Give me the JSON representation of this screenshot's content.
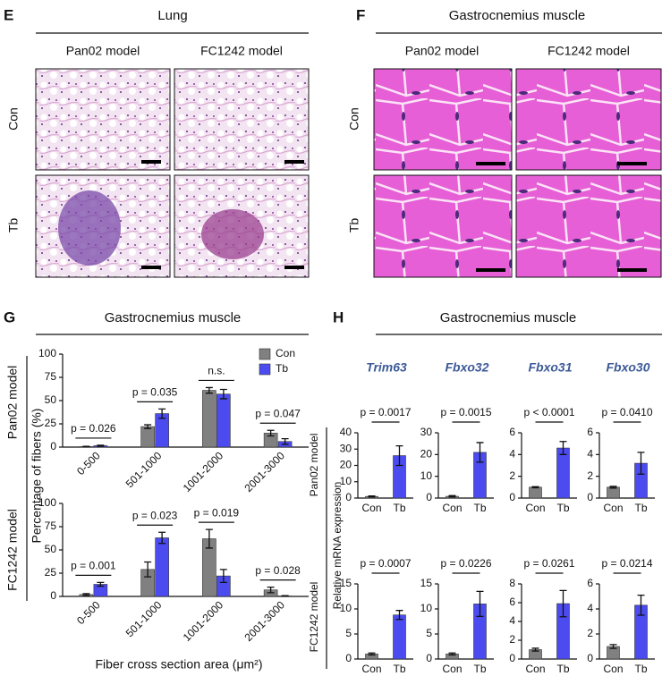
{
  "panel_e": {
    "letter": "E",
    "title": "Lung",
    "columns": [
      "Pan02 model",
      "FC1242 model"
    ],
    "rows": [
      "Con",
      "Tb"
    ]
  },
  "panel_f": {
    "letter": "F",
    "title": "Gastrocnemius muscle",
    "columns": [
      "Pan02 model",
      "FC1242 model"
    ],
    "rows": [
      "Con",
      "Tb"
    ]
  },
  "panel_g": {
    "letter": "G",
    "title": "Gastrocnemius muscle",
    "row_labels": [
      "Pan02 model",
      "FC1242 model"
    ],
    "y_label": "Percentage of fibers (%)",
    "x_label": "Fiber cross section area (μm²)"
  },
  "panel_h": {
    "letter": "H",
    "title": "Gastrocnemius muscle",
    "genes": [
      "Trim63",
      "Fbxo32",
      "Fbxo31",
      "Fbxo30"
    ],
    "row_labels": [
      "Pan02 model",
      "FC1242 model"
    ],
    "y_label": "Relative mRNA expression"
  },
  "chart_data": [
    {
      "type": "bar",
      "categories": [
        "0-500",
        "501-1000",
        "1001-2000",
        "2001-3000"
      ],
      "series": [
        {
          "name": "Con",
          "color": "#808080",
          "values": [
            0.5,
            22,
            61,
            15
          ],
          "errors": [
            0.3,
            2,
            3,
            3
          ]
        },
        {
          "name": "Tb",
          "color": "#4b4bf0",
          "values": [
            1.5,
            36,
            57,
            6
          ],
          "errors": [
            0.5,
            5,
            5,
            3
          ]
        }
      ],
      "ylim": [
        0,
        100
      ],
      "yticks": [
        0,
        25,
        50,
        75,
        100
      ],
      "legend": "upper right",
      "p_values": [
        "p = 0.026",
        "p = 0.035",
        "n.s.",
        "p = 0.047"
      ]
    },
    {
      "type": "bar",
      "categories": [
        "0-500",
        "501-1000",
        "1001-2000",
        "2001-3000"
      ],
      "series": [
        {
          "color": "#808080",
          "values": [
            2,
            29,
            62,
            7
          ],
          "errors": [
            1,
            8,
            10,
            3
          ]
        },
        {
          "color": "#4b4bf0",
          "values": [
            13,
            63,
            22,
            0.5
          ],
          "errors": [
            2,
            6,
            7,
            0.3
          ]
        }
      ],
      "ylim": [
        0,
        100
      ],
      "yticks": [
        0,
        25,
        50,
        75,
        100
      ],
      "p_values": [
        "p = 0.001",
        "p = 0.023",
        "p = 0.019",
        "p = 0.028"
      ]
    },
    {
      "type": "bar",
      "categories": [
        "Con",
        "Tb"
      ],
      "values": [
        1,
        26
      ],
      "errors": [
        0.3,
        6
      ],
      "colors": [
        "#808080",
        "#4b4bf0"
      ],
      "ylim": [
        0,
        40
      ],
      "yticks": [
        0,
        10,
        20,
        30,
        40
      ],
      "p_value": "p = 0.0017"
    },
    {
      "type": "bar",
      "categories": [
        "Con",
        "Tb"
      ],
      "values": [
        0.8,
        21
      ],
      "errors": [
        0.3,
        4.5
      ],
      "colors": [
        "#808080",
        "#4b4bf0"
      ],
      "ylim": [
        0,
        30
      ],
      "yticks": [
        0,
        10,
        20,
        30
      ],
      "p_value": "p = 0.0015"
    },
    {
      "type": "bar",
      "categories": [
        "Con",
        "Tb"
      ],
      "values": [
        1,
        4.6
      ],
      "errors": [
        0.05,
        0.6
      ],
      "colors": [
        "#808080",
        "#4b4bf0"
      ],
      "ylim": [
        0,
        6
      ],
      "yticks": [
        0,
        2,
        4,
        6
      ],
      "p_value": "p < 0.0001"
    },
    {
      "type": "bar",
      "categories": [
        "Con",
        "Tb"
      ],
      "values": [
        1,
        3.2
      ],
      "errors": [
        0.08,
        1
      ],
      "colors": [
        "#808080",
        "#4b4bf0"
      ],
      "ylim": [
        0,
        6
      ],
      "yticks": [
        0,
        2,
        4,
        6
      ],
      "p_value": "p = 0.0410"
    },
    {
      "type": "bar",
      "categories": [
        "Con",
        "Tb"
      ],
      "values": [
        1,
        8.8
      ],
      "errors": [
        0.2,
        0.9
      ],
      "colors": [
        "#808080",
        "#4b4bf0"
      ],
      "ylim": [
        0,
        15
      ],
      "yticks": [
        0,
        5,
        10,
        15
      ],
      "p_value": "p = 0.0007"
    },
    {
      "type": "bar",
      "categories": [
        "Con",
        "Tb"
      ],
      "values": [
        1,
        11
      ],
      "errors": [
        0.2,
        2.5
      ],
      "colors": [
        "#808080",
        "#4b4bf0"
      ],
      "ylim": [
        0,
        15
      ],
      "yticks": [
        0,
        5,
        10,
        15
      ],
      "p_value": "p = 0.0226"
    },
    {
      "type": "bar",
      "categories": [
        "Con",
        "Tb"
      ],
      "values": [
        1,
        5.9
      ],
      "errors": [
        0.15,
        1.4
      ],
      "colors": [
        "#808080",
        "#4b4bf0"
      ],
      "ylim": [
        0,
        8
      ],
      "yticks": [
        0,
        2,
        4,
        6,
        8
      ],
      "p_value": "p = 0.0261"
    },
    {
      "type": "bar",
      "categories": [
        "Con",
        "Tb"
      ],
      "values": [
        1,
        4.3
      ],
      "errors": [
        0.15,
        0.8
      ],
      "colors": [
        "#808080",
        "#4b4bf0"
      ],
      "ylim": [
        0,
        6
      ],
      "yticks": [
        0,
        2,
        4,
        6
      ],
      "p_value": "p = 0.0214"
    }
  ]
}
